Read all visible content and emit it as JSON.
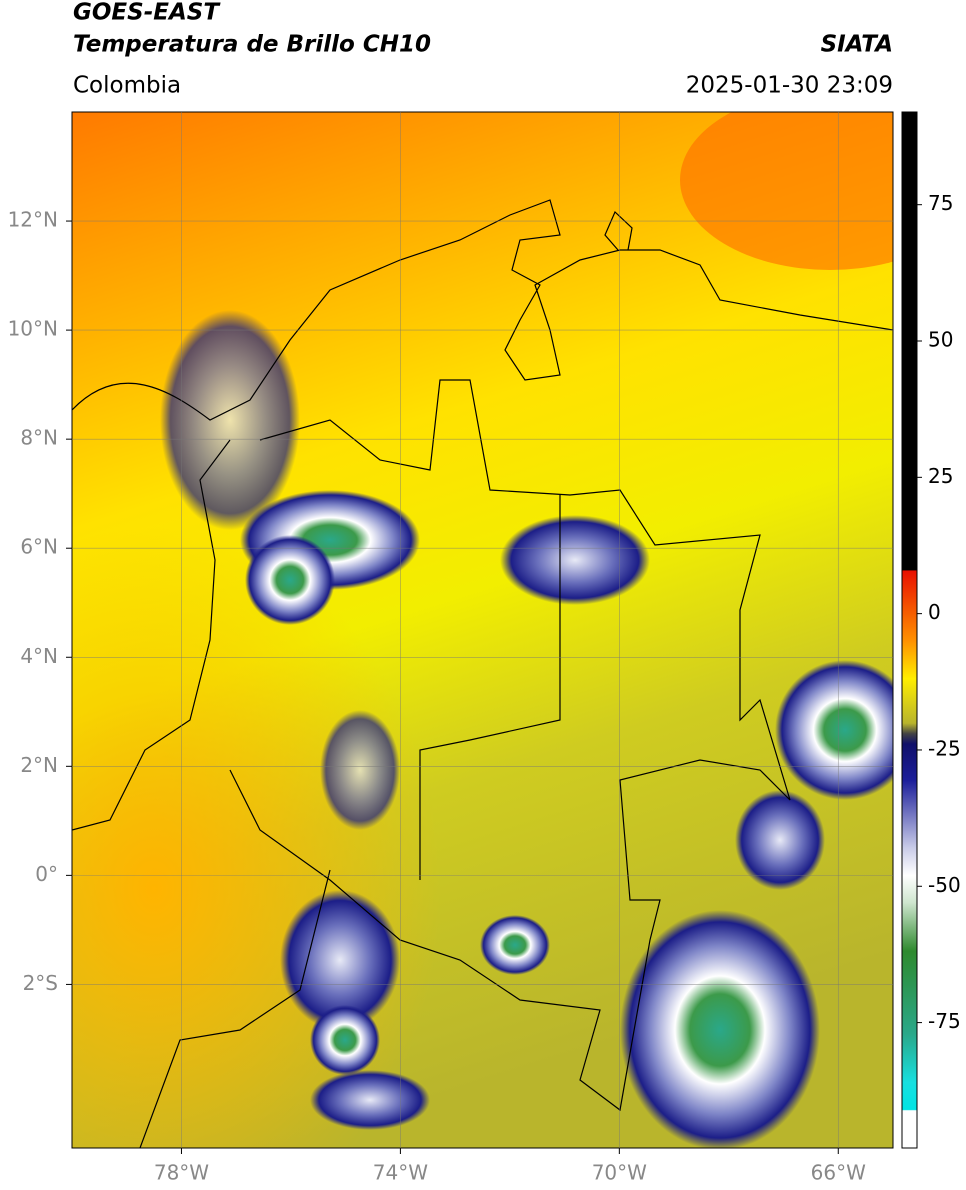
{
  "header": {
    "title_line1": "GOES-EAST",
    "title_line2": "Temperatura de Brillo CH10",
    "region": "Colombia",
    "source": "SIATA",
    "datetime": "2025-01-30 23:09"
  },
  "map": {
    "lonlim": [
      -80,
      -65
    ],
    "latlim": [
      -5,
      14
    ],
    "lon_ticks": [
      {
        "value": -78,
        "label": "78°W"
      },
      {
        "value": -74,
        "label": "74°W"
      },
      {
        "value": -70,
        "label": "70°W"
      },
      {
        "value": -66,
        "label": "66°W"
      }
    ],
    "lat_ticks": [
      {
        "value": 12,
        "label": "12°N"
      },
      {
        "value": 10,
        "label": "10°N"
      },
      {
        "value": 8,
        "label": "8°N"
      },
      {
        "value": 6,
        "label": "6°N"
      },
      {
        "value": 4,
        "label": "4°N"
      },
      {
        "value": 2,
        "label": "2°N"
      },
      {
        "value": 0,
        "label": "0°"
      },
      {
        "value": -2,
        "label": "2°S"
      }
    ],
    "grid": true
  },
  "colorbar": {
    "lim": [
      -98,
      92
    ],
    "ticks": [
      75,
      50,
      25,
      0,
      -25,
      -50,
      -75
    ]
  }
}
